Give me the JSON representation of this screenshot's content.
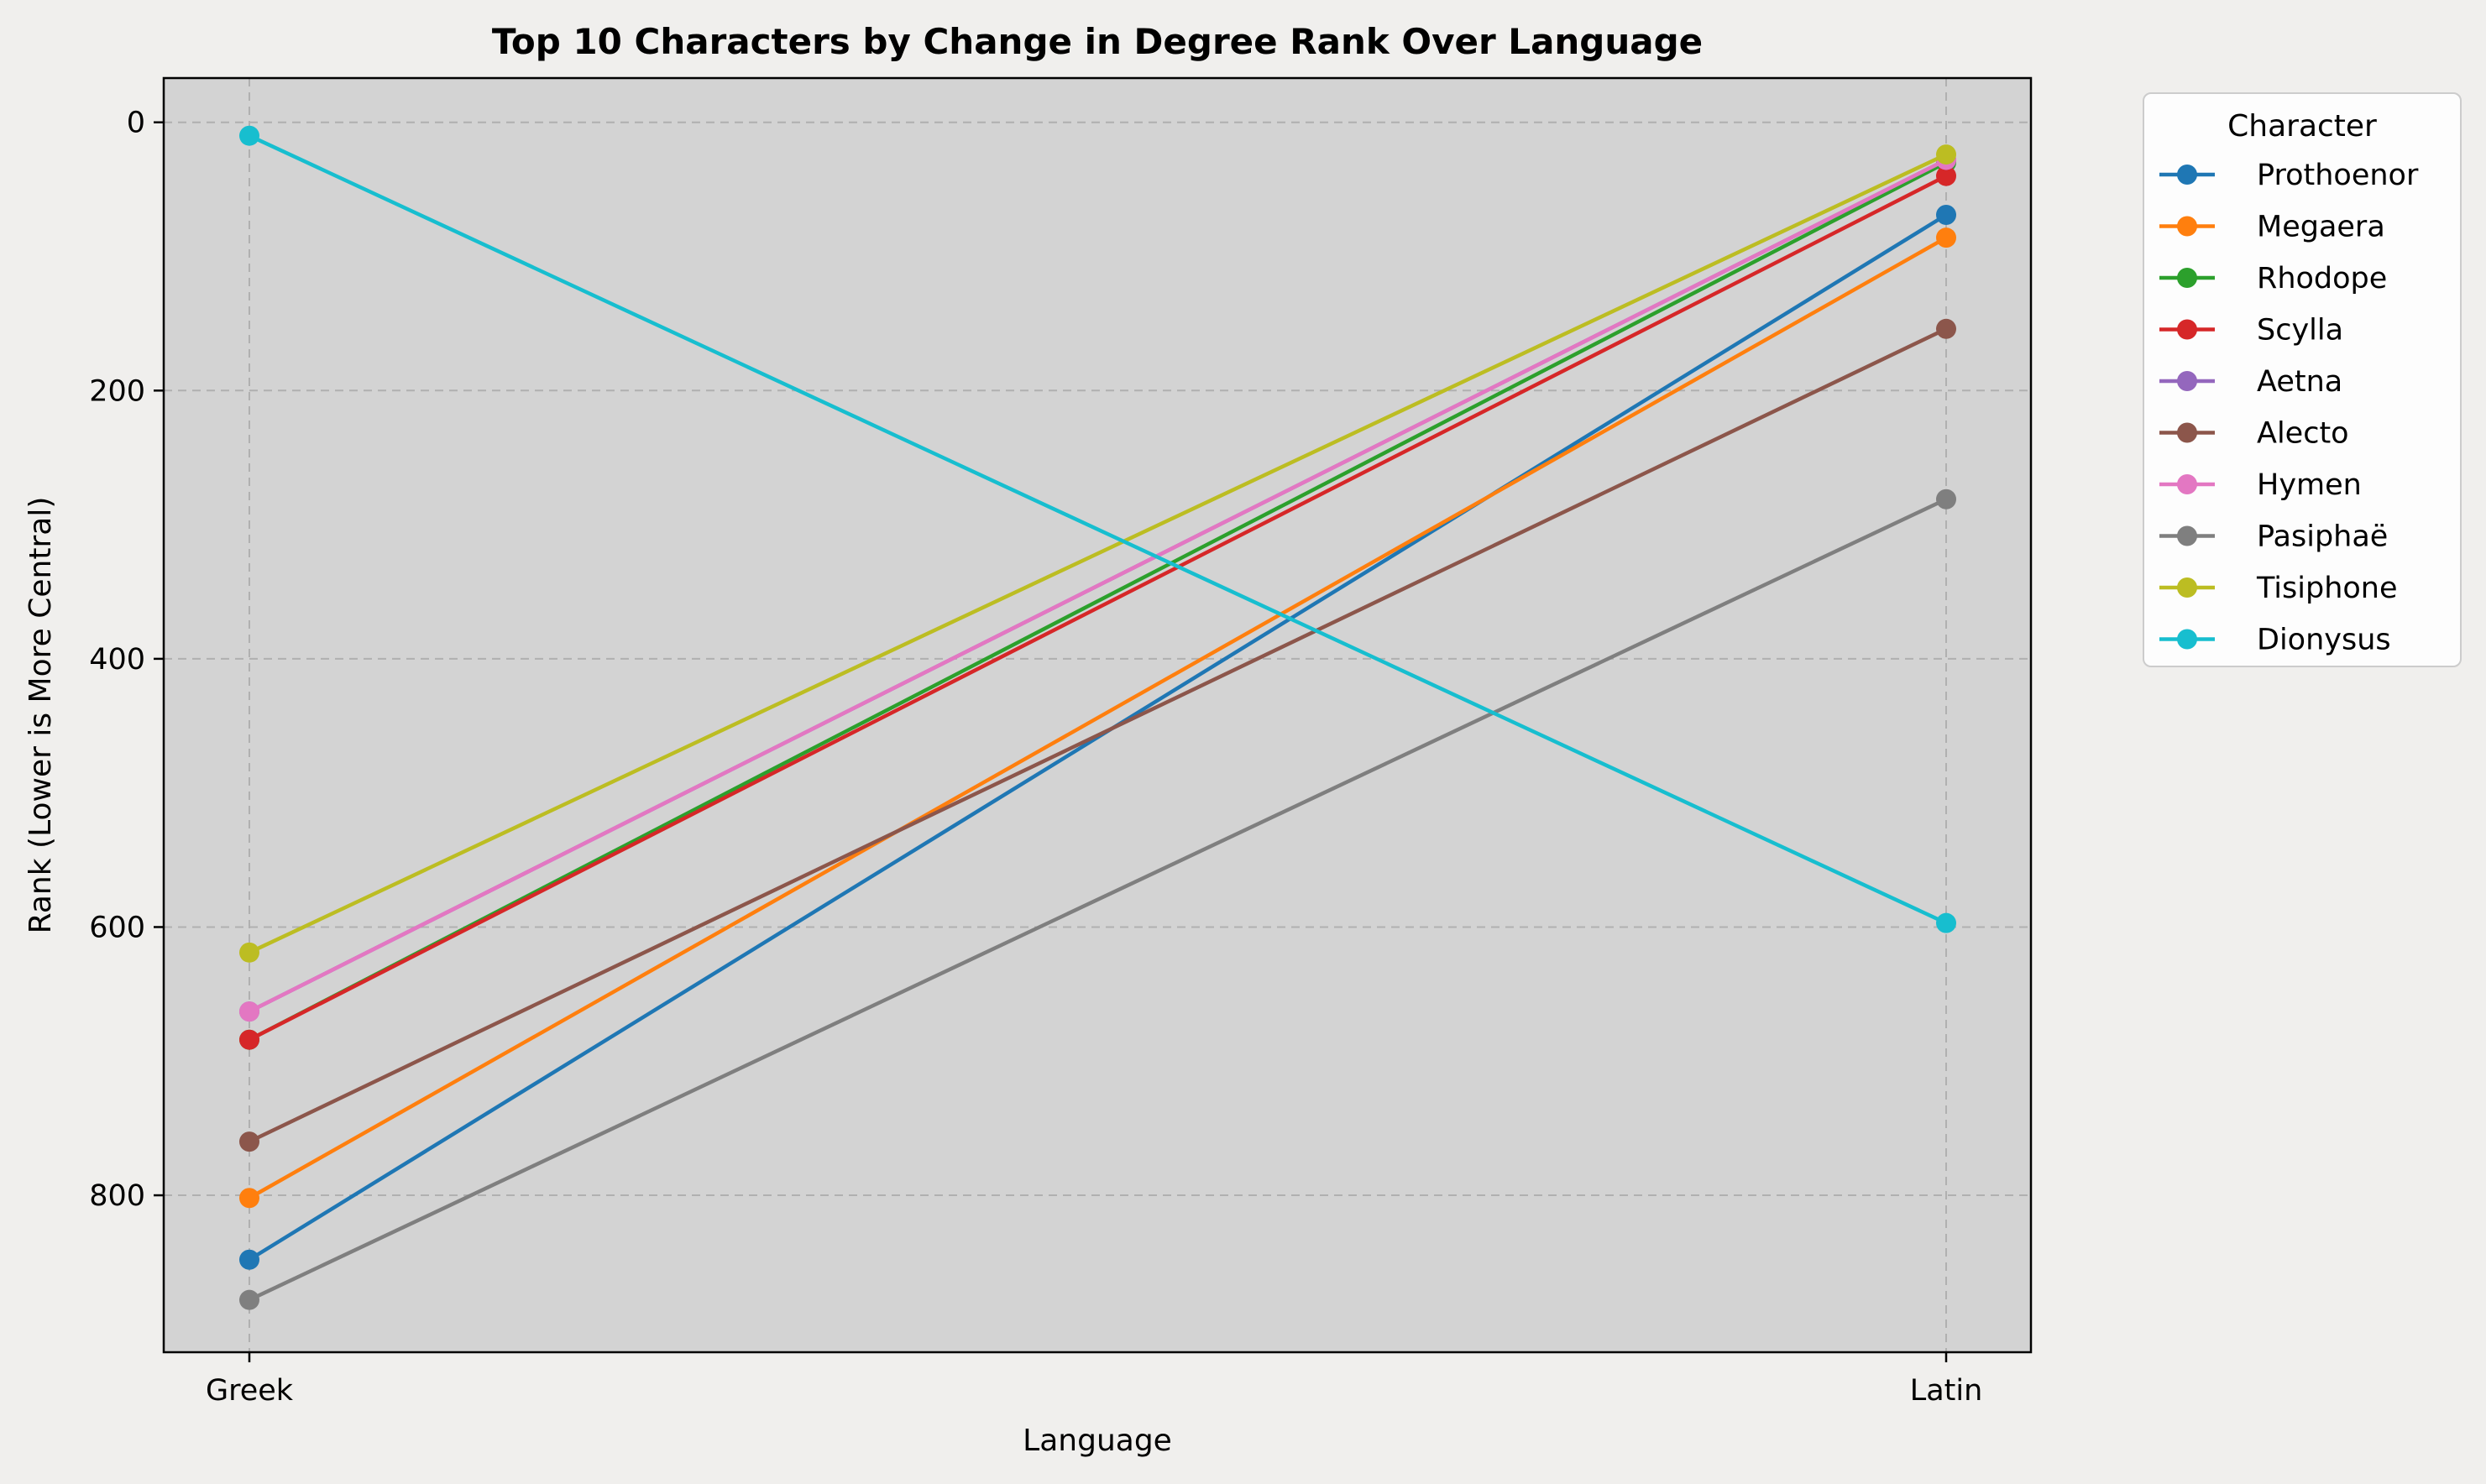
{
  "chart_data": {
    "type": "line",
    "title": "Top 10 Characters by Change in Degree Rank Over Language",
    "xlabel": "Language",
    "ylabel": "Rank (Lower is More Central)",
    "categories": [
      "Greek",
      "Latin"
    ],
    "y_inverted": true,
    "ylim": [
      917,
      -33
    ],
    "yticks": [
      0,
      200,
      400,
      600,
      800
    ],
    "grid": true,
    "legend_title": "Character",
    "legend_position": "outside-top-right",
    "background_color": "#d3d3d3",
    "series": [
      {
        "name": "Prothoenor",
        "values": [
          848,
          69
        ],
        "color": "#1f77b4"
      },
      {
        "name": "Megaera",
        "values": [
          802,
          86
        ],
        "color": "#ff7f0e"
      },
      {
        "name": "Rhodope",
        "values": [
          684,
          30
        ],
        "color": "#2ca02c"
      },
      {
        "name": "Scylla",
        "values": [
          684,
          40
        ],
        "color": "#d62728"
      },
      {
        "name": "Aetna",
        "values": [
          663,
          28
        ],
        "color": "#9467bd"
      },
      {
        "name": "Alecto",
        "values": [
          760,
          154
        ],
        "color": "#8c564b"
      },
      {
        "name": "Hymen",
        "values": [
          663,
          28
        ],
        "color": "#e377c2"
      },
      {
        "name": "Pasiphaë",
        "values": [
          878,
          281
        ],
        "color": "#7f7f7f"
      },
      {
        "name": "Tisiphone",
        "values": [
          619,
          24
        ],
        "color": "#bcbd22"
      },
      {
        "name": "Dionysus",
        "values": [
          10,
          597
        ],
        "color": "#17becf"
      }
    ]
  }
}
